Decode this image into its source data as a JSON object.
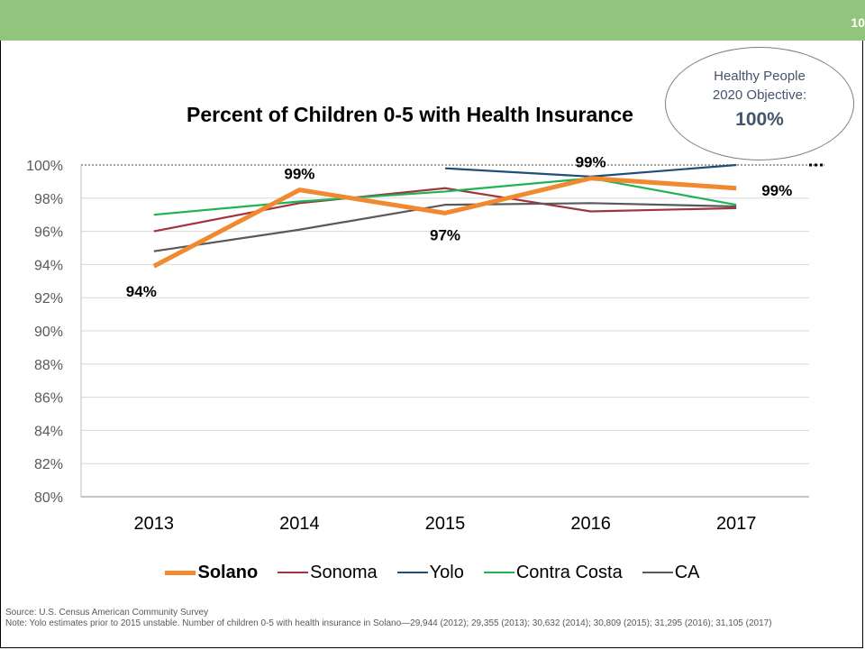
{
  "page_number": "10",
  "callout": {
    "line1": "Healthy People",
    "line2": "2020 Objective:",
    "value": "100%"
  },
  "title": "Percent of Children 0-5 with Health Insurance",
  "chart_data": {
    "type": "line",
    "title": "Percent of Children 0-5 with Health Insurance",
    "x": [
      "2013",
      "2014",
      "2015",
      "2016",
      "2017"
    ],
    "ylim": [
      80,
      100
    ],
    "yticks": [
      80,
      82,
      84,
      86,
      88,
      90,
      92,
      94,
      96,
      98,
      100
    ],
    "ytick_labels": [
      "80%",
      "82%",
      "84%",
      "86%",
      "88%",
      "90%",
      "92%",
      "94%",
      "96%",
      "98%",
      "100%"
    ],
    "grid": true,
    "reference_line": 100,
    "legend_position": "bottom",
    "series": [
      {
        "name": "Solano",
        "color": "#f0892f",
        "bold": true,
        "values": [
          93.9,
          98.5,
          97.1,
          99.2,
          98.6
        ]
      },
      {
        "name": "Sonoma",
        "color": "#a0353f",
        "bold": false,
        "values": [
          96.0,
          97.7,
          98.6,
          97.2,
          97.4
        ]
      },
      {
        "name": "Yolo",
        "color": "#1f4e79",
        "bold": false,
        "values": [
          null,
          null,
          99.8,
          99.3,
          100.0
        ]
      },
      {
        "name": "Contra Costa",
        "color": "#1fb356",
        "bold": false,
        "values": [
          97.0,
          97.8,
          98.4,
          99.2,
          97.6
        ]
      },
      {
        "name": "CA",
        "color": "#595959",
        "bold": false,
        "values": [
          94.8,
          96.1,
          97.6,
          97.7,
          97.5
        ]
      }
    ],
    "data_labels": [
      {
        "series": "Solano",
        "index": 0,
        "text": "94%",
        "pos": "below"
      },
      {
        "series": "Solano",
        "index": 1,
        "text": "99%",
        "pos": "above"
      },
      {
        "series": "Solano",
        "index": 2,
        "text": "97%",
        "pos": "below"
      },
      {
        "series": "Solano",
        "index": 3,
        "text": "99%",
        "pos": "above"
      },
      {
        "series": "Solano",
        "index": 4,
        "text": "99%",
        "pos": "right"
      }
    ]
  },
  "footer": {
    "source": "Source: U.S. Census American Community Survey",
    "note": "Note: Yolo estimates prior to 2015 unstable. Number of children 0-5 with health insurance in Solano—29,944 (2012); 29,355 (2013); 30,632 (2014); 30,809 (2015); 31,295 (2016); 31,105 (2017)"
  }
}
